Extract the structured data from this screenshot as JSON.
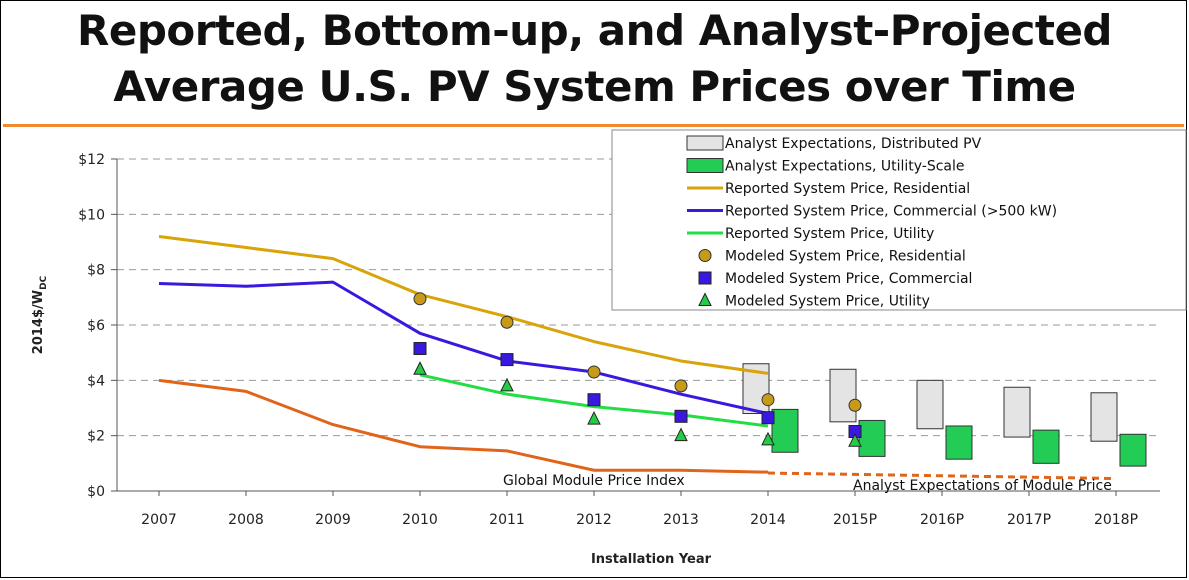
{
  "title": {
    "line1": "Reported, Bottom-up, and Analyst-Projected",
    "line2": "Average U.S. PV System Prices over Time"
  },
  "colors": {
    "accent_rule": "#ef8a2e",
    "residential": "#d9a40a",
    "commercial": "#3a18e0",
    "utility": "#22dd44",
    "module": "#e0641a",
    "distributed_box": "#e4e4e4",
    "utility_box": "#22cc55"
  },
  "chart_data": {
    "type": "line",
    "xlabel": "Installation Year",
    "ylabel": "2014$/W",
    "ylabel_sub": "DC",
    "categories": [
      "2007",
      "2008",
      "2009",
      "2010",
      "2011",
      "2012",
      "2013",
      "2014",
      "2015P",
      "2016P",
      "2017P",
      "2018P"
    ],
    "ylim": [
      0,
      12
    ],
    "yticks": [
      "$0",
      "$2",
      "$4",
      "$6",
      "$8",
      "$10",
      "$12"
    ],
    "grid": true,
    "legend_position": "top-right",
    "series": [
      {
        "name": "Reported System Price, Residential",
        "kind": "line",
        "color": "#d9a40a",
        "x": [
          "2007",
          "2008",
          "2009",
          "2010",
          "2011",
          "2012",
          "2013",
          "2014"
        ],
        "values": [
          9.2,
          8.8,
          8.4,
          7.1,
          6.3,
          5.4,
          4.7,
          4.25
        ]
      },
      {
        "name": "Reported System Price, Commercial (>500 kW)",
        "kind": "line",
        "color": "#3a18e0",
        "x": [
          "2007",
          "2008",
          "2009",
          "2010",
          "2011",
          "2012",
          "2013",
          "2014"
        ],
        "values": [
          7.5,
          7.4,
          7.55,
          5.7,
          4.7,
          4.3,
          3.5,
          2.8
        ]
      },
      {
        "name": "Reported System Price, Utility",
        "kind": "line",
        "color": "#22dd44",
        "x": [
          "2010",
          "2011",
          "2012",
          "2013",
          "2014"
        ],
        "values": [
          4.2,
          3.5,
          3.05,
          2.75,
          2.35
        ]
      },
      {
        "name": "Global Module Price Index",
        "kind": "line",
        "color": "#e0641a",
        "x": [
          "2007",
          "2008",
          "2009",
          "2010",
          "2011",
          "2012",
          "2013",
          "2014"
        ],
        "values": [
          4.0,
          3.6,
          2.4,
          1.6,
          1.45,
          0.75,
          0.75,
          0.68
        ]
      },
      {
        "name": "Analyst Expectations of Module Price",
        "kind": "dashed-line",
        "color": "#e0641a",
        "x": [
          "2014",
          "2015P",
          "2016P",
          "2017P",
          "2018P"
        ],
        "values": [
          0.65,
          0.6,
          0.55,
          0.5,
          0.45
        ]
      },
      {
        "name": "Modeled System Price, Residential",
        "kind": "circle",
        "color": "#c89a1a",
        "x": [
          "2010",
          "2011",
          "2012",
          "2013",
          "2014",
          "2015P"
        ],
        "values": [
          6.95,
          6.1,
          4.3,
          3.8,
          3.3,
          3.1
        ]
      },
      {
        "name": "Modeled System Price, Commercial",
        "kind": "square",
        "color": "#3a18e0",
        "x": [
          "2010",
          "2011",
          "2012",
          "2013",
          "2014",
          "2015P"
        ],
        "values": [
          5.15,
          4.75,
          3.3,
          2.7,
          2.65,
          2.15
        ]
      },
      {
        "name": "Modeled System Price, Utility",
        "kind": "triangle",
        "color": "#22cc44",
        "x": [
          "2010",
          "2011",
          "2012",
          "2013",
          "2014",
          "2015P"
        ],
        "values": [
          4.4,
          3.8,
          2.6,
          2.0,
          1.85,
          1.8
        ]
      },
      {
        "name": "Analyst Expectations, Distributed PV",
        "kind": "range-box",
        "color": "#e4e4e4",
        "x": [
          "2014",
          "2015P",
          "2016P",
          "2017P",
          "2018P"
        ],
        "low": [
          2.8,
          2.5,
          2.25,
          1.95,
          1.8
        ],
        "high": [
          4.6,
          4.4,
          4.0,
          3.75,
          3.55
        ]
      },
      {
        "name": "Analyst Expectations, Utility-Scale",
        "kind": "range-box",
        "color": "#22cc55",
        "x": [
          "2014",
          "2015P",
          "2016P",
          "2017P",
          "2018P"
        ],
        "low": [
          1.4,
          1.25,
          1.15,
          1.0,
          0.9
        ],
        "high": [
          2.95,
          2.55,
          2.35,
          2.2,
          2.05
        ]
      }
    ],
    "annotations": [
      {
        "text": "Global Module Price Index",
        "near": "2012"
      },
      {
        "text": "Analyst Expectations of Module Price",
        "near": "2017P"
      }
    ]
  }
}
